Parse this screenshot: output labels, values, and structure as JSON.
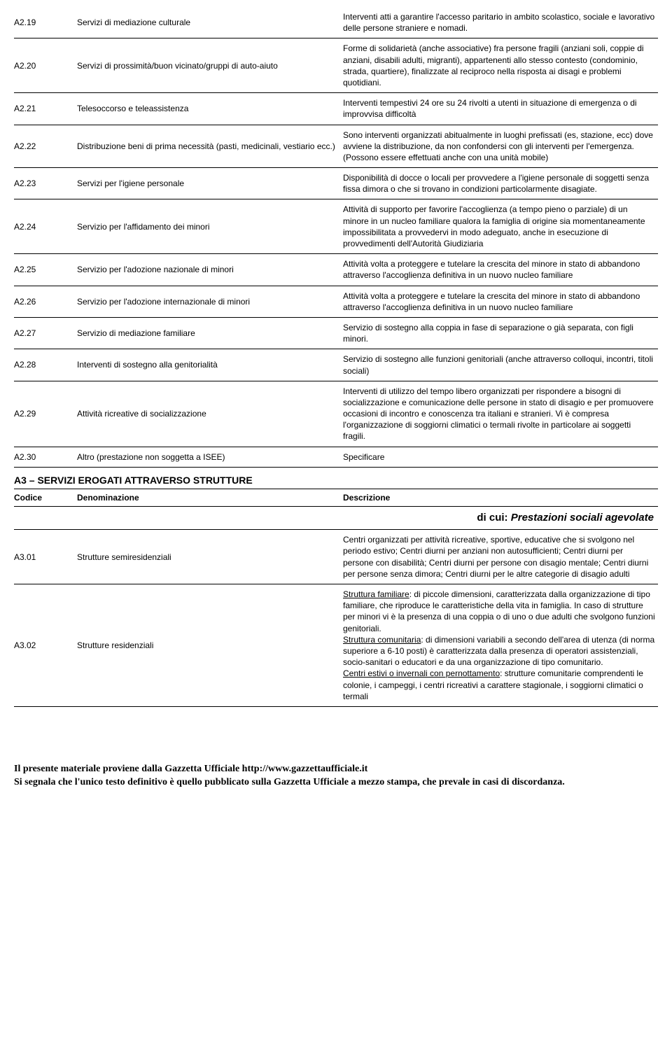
{
  "headers": {
    "codice": "Codice",
    "denominazione": "Denominazione",
    "descrizione": "Descrizione"
  },
  "section3": {
    "title": "A3 – SERVIZI EROGATI ATTRAVERSO STRUTTURE",
    "subheading_prefix": "di cui: ",
    "subheading_italic": "Prestazioni sociali agevolate"
  },
  "rowsA2": [
    {
      "code": "A2.19",
      "denom": "Servizi di mediazione culturale",
      "descr": "Interventi atti a garantire l'accesso paritario in ambito scolastico, sociale e lavorativo delle persone straniere e nomadi."
    },
    {
      "code": "A2.20",
      "denom": "Servizi di prossimità/buon vicinato/gruppi di auto-aiuto",
      "descr": "Forme di solidarietà (anche associative) fra persone fragili (anziani soli, coppie di anziani, disabili adulti, migranti), appartenenti allo stesso contesto (condominio, strada, quartiere), finalizzate al reciproco nella risposta ai disagi e problemi quotidiani."
    },
    {
      "code": "A2.21",
      "denom": "Telesoccorso e teleassistenza",
      "descr": "Interventi tempestivi 24 ore su 24 rivolti a utenti in situazione di emergenza o di improvvisa difficoltà"
    },
    {
      "code": "A2.22",
      "denom": "Distribuzione beni di prima necessità (pasti, medicinali, vestiario ecc.)",
      "descr": "Sono interventi organizzati abitualmente in luoghi prefissati (es, stazione, ecc) dove avviene la distribuzione, da non confondersi con gli interventi per l'emergenza. (Possono essere effettuati anche con una unità mobile)"
    },
    {
      "code": "A2.23",
      "denom": "Servizi per l'igiene personale",
      "descr": "Disponibilità di docce o locali per provvedere a l'igiene personale di soggetti senza fissa dimora o che si trovano in condizioni particolarmente disagiate."
    },
    {
      "code": "A2.24",
      "denom": "Servizio per l'affidamento dei minori",
      "descr": "Attività di supporto per favorire l'accoglienza (a tempo pieno o parziale) di un minore in un nucleo familiare qualora la famiglia di origine sia momentaneamente impossibilitata a provvedervi in modo adeguato, anche in esecuzione di provvedimenti dell'Autorità Giudiziaria"
    },
    {
      "code": "A2.25",
      "denom": "Servizio per l'adozione nazionale di minori",
      "descr": "Attività volta a proteggere e tutelare la crescita del minore in stato di abbandono attraverso l'accoglienza definitiva in un nuovo nucleo familiare"
    },
    {
      "code": "A2.26",
      "denom": "Servizio per l'adozione internazionale di minori",
      "descr": "Attività volta a proteggere e tutelare la crescita del minore in stato di abbandono attraverso l'accoglienza definitiva in un nuovo nucleo familiare"
    },
    {
      "code": "A2.27",
      "denom": "Servizio di mediazione familiare",
      "descr": "Servizio di sostegno alla coppia in fase di separazione o già separata, con figli minori."
    },
    {
      "code": "A2.28",
      "denom": "Interventi di sostegno alla genitorialità",
      "descr": "Servizio di sostegno alle funzioni genitoriali (anche attraverso colloqui, incontri, titoli sociali)"
    },
    {
      "code": "A2.29",
      "denom": "Attività ricreative di socializzazione",
      "descr": "Interventi di utilizzo del tempo libero organizzati per rispondere a bisogni di socializzazione e comunicazione delle persone in stato di disagio e per promuovere occasioni di incontro e conoscenza tra italiani e stranieri. Vi è compresa l'organizzazione di soggiorni climatici o termali rivolte in particolare ai soggetti fragili."
    },
    {
      "code": "A2.30",
      "denom": "Altro (prestazione non soggetta a ISEE)",
      "descr": "Specificare"
    }
  ],
  "rowsA3": [
    {
      "code": "A3.01",
      "denom": "Strutture semiresidenziali",
      "descr": "Centri organizzati per attività ricreative, sportive, educative che si svolgono nel periodo estivo; Centri diurni per anziani non autosufficienti; Centri diurni per persone con disabilità; Centri diurni per persone con disagio mentale; Centri diurni per persone senza dimora; Centri diurni per le altre categorie di disagio adulti"
    },
    {
      "code": "A3.02",
      "denom": "Strutture residenziali",
      "descr_parts": [
        {
          "u": "Struttura familiare",
          "t": ": di piccole dimensioni, caratterizzata dalla organizzazione di tipo familiare, che riproduce le caratteristiche della vita in famiglia. In caso di strutture per minori vi è la presenza di una coppia o di uno o due adulti che svolgono funzioni genitoriali."
        },
        {
          "u": "Struttura comunitaria",
          "t": ": di dimensioni variabili a secondo dell'area di utenza (di norma superiore a 6-10 posti) è caratterizzata dalla presenza di operatori assistenziali, socio-sanitari o educatori e da una organizzazione di tipo comunitario."
        },
        {
          "u": "Centri estivi o invernali con pernottamento",
          "t": ": strutture comunitarie comprendenti le colonie, i campeggi, i centri ricreativi a carattere stagionale, i soggiorni climatici o termali"
        }
      ]
    }
  ],
  "footer": {
    "line1": "Il presente materiale proviene dalla Gazzetta Ufficiale http://www.gazzettaufficiale.it",
    "line2": "Si segnala che l'unico testo definitivo è quello pubblicato sulla Gazzetta Ufficiale a mezzo stampa, che prevale in casi di discordanza."
  }
}
